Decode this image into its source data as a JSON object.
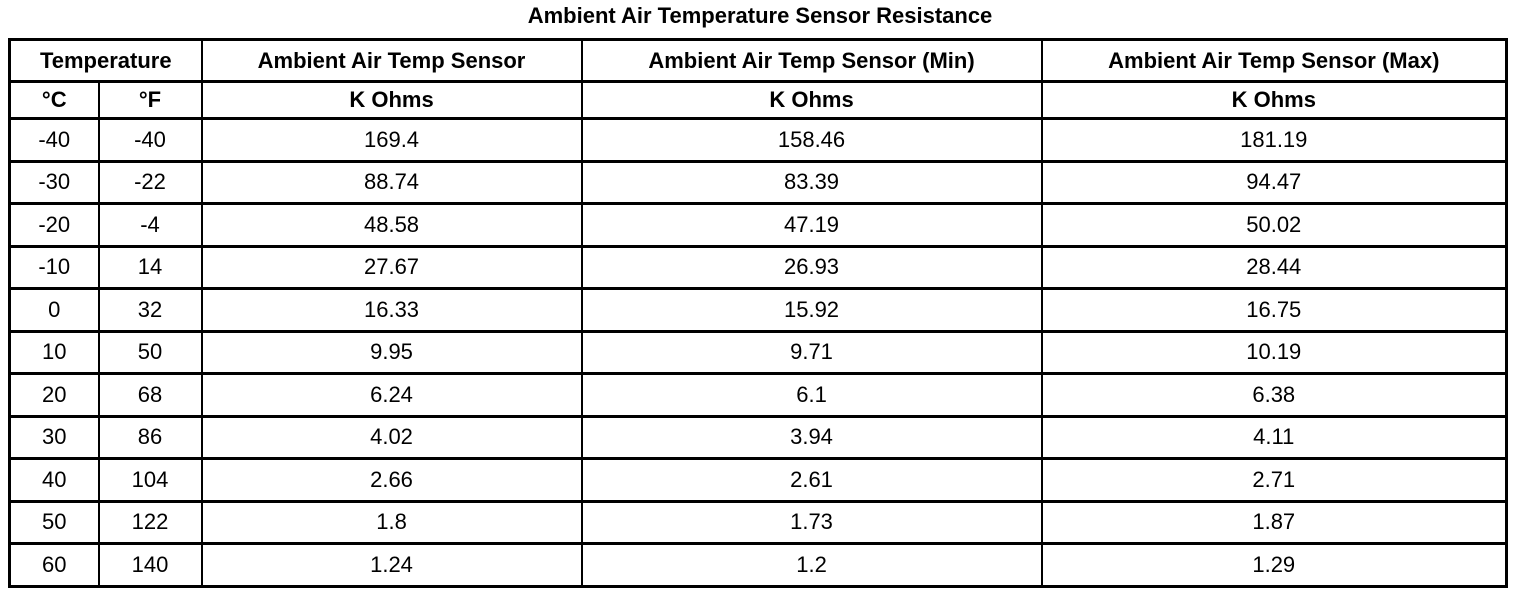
{
  "title": "Ambient Air Temperature Sensor Resistance",
  "chart_data": {
    "type": "table",
    "title": "Ambient Air Temperature Sensor Resistance",
    "column_groups": [
      {
        "label": "Temperature",
        "span": 2
      },
      {
        "label": "Ambient Air Temp Sensor",
        "span": 1
      },
      {
        "label": "Ambient Air Temp Sensor (Min)",
        "span": 1
      },
      {
        "label": "Ambient Air Temp Sensor (Max)",
        "span": 1
      }
    ],
    "sub_headers": [
      "°C",
      "°F",
      "K Ohms",
      "K Ohms",
      "K Ohms"
    ],
    "rows": [
      [
        "-40",
        "-40",
        "169.4",
        "158.46",
        "181.19"
      ],
      [
        "-30",
        "-22",
        "88.74",
        "83.39",
        "94.47"
      ],
      [
        "-20",
        "-4",
        "48.58",
        "47.19",
        "50.02"
      ],
      [
        "-10",
        "14",
        "27.67",
        "26.93",
        "28.44"
      ],
      [
        "0",
        "32",
        "16.33",
        "15.92",
        "16.75"
      ],
      [
        "10",
        "50",
        "9.95",
        "9.71",
        "10.19"
      ],
      [
        "20",
        "68",
        "6.24",
        "6.1",
        "6.38"
      ],
      [
        "30",
        "86",
        "4.02",
        "3.94",
        "4.11"
      ],
      [
        "40",
        "104",
        "2.66",
        "2.61",
        "2.71"
      ],
      [
        "50",
        "122",
        "1.8",
        "1.73",
        "1.87"
      ],
      [
        "60",
        "140",
        "1.24",
        "1.2",
        "1.29"
      ]
    ]
  },
  "colors": {
    "background": "#ffffff",
    "border": "#000000",
    "text": "#000000"
  }
}
